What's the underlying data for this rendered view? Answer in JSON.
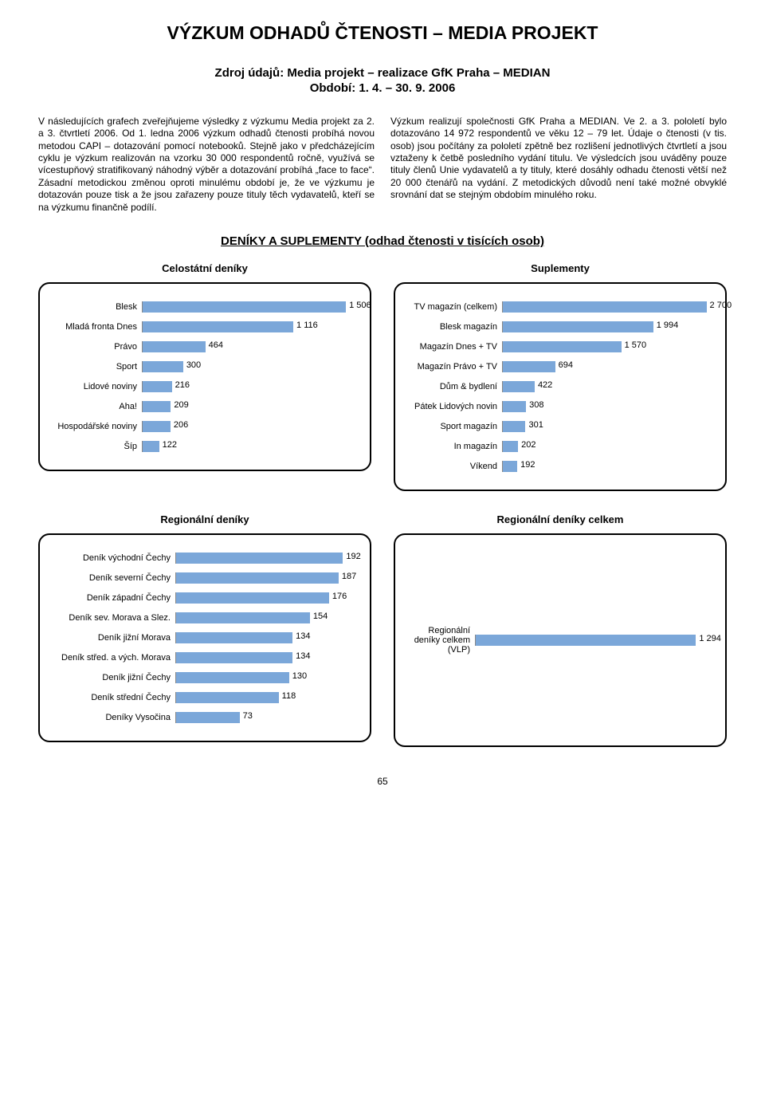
{
  "header": {
    "title": "VÝZKUM ODHADŮ ČTENOSTI – MEDIA PROJEKT",
    "subtitle": "Zdroj údajů: Media projekt – realizace GfK Praha – MEDIAN",
    "period": "Období: 1. 4. – 30. 9. 2006"
  },
  "body": {
    "left": "V následujících grafech zveřejňujeme výsledky z výzkumu Media projekt za 2. a 3. čtvrtletí 2006. Od 1. ledna 2006 výzkum odhadů čtenosti probíhá novou metodou CAPI – dotazování pomocí notebooků. Stejně jako v předcházejícím cyklu je výzkum realizován na vzorku 30 000 respondentů ročně, využívá se vícestupňový stratifikovaný náhodný výběr a dotazování probíhá „face to face“. Zásadní metodickou změnou oproti minulému období je, že ve výzkumu je dotazován pouze tisk a že jsou zařazeny pouze tituly těch vydavatelů, kteří se na výzkumu finančně podílí.",
    "right": "Výzkum realizují společnosti GfK Praha a MEDIAN. Ve 2. a 3. pololetí bylo dotazováno 14 972 respondentů ve věku 12 – 79 let. Údaje o čtenosti (v tis. osob) jsou počítány za pololetí zpětně bez rozlišení jednotlivých čtvrtletí a jsou vztaženy k četbě posledního vydání titulu. Ve výsledcích jsou uváděny pouze tituly členů Unie vydavatelů a ty tituly, které dosáhly odhadu čtenosti větší než 20 000 čtenářů na vydání. Z metodických důvodů není také možné obvyklé srovnání dat se stejným obdobím minulého roku."
  },
  "section_heading": "DENÍKY A SUPLEMENTY (odhad čtenosti v tisících osob)",
  "charts": {
    "bar_color": "#7ba7d9",
    "celostatni": {
      "caption": "Celostátní deníky",
      "label_width": 118,
      "max": 1600,
      "items": [
        {
          "label": "Blesk",
          "value": 1506,
          "text": "1 506"
        },
        {
          "label": "Mladá fronta Dnes",
          "value": 1116,
          "text": "1 116"
        },
        {
          "label": "Právo",
          "value": 464,
          "text": "464"
        },
        {
          "label": "Sport",
          "value": 300,
          "text": "300"
        },
        {
          "label": "Lidové noviny",
          "value": 216,
          "text": "216"
        },
        {
          "label": "Aha!",
          "value": 209,
          "text": "209"
        },
        {
          "label": "Hospodářské noviny",
          "value": 206,
          "text": "206"
        },
        {
          "label": "Šíp",
          "value": 122,
          "text": "122"
        }
      ]
    },
    "suplementy": {
      "caption": "Suplementy",
      "label_width": 124,
      "max": 2800,
      "items": [
        {
          "label": "TV magazín (celkem)",
          "value": 2700,
          "text": "2 700"
        },
        {
          "label": "Blesk magazín",
          "value": 1994,
          "text": "1 994"
        },
        {
          "label": "Magazín Dnes + TV",
          "value": 1570,
          "text": "1 570"
        },
        {
          "label": "Magazín Právo + TV",
          "value": 694,
          "text": "694"
        },
        {
          "label": "Dům & bydlení",
          "value": 422,
          "text": "422"
        },
        {
          "label": "Pátek Lidových novin",
          "value": 308,
          "text": "308"
        },
        {
          "label": "Sport magazín",
          "value": 301,
          "text": "301"
        },
        {
          "label": "In magazín",
          "value": 202,
          "text": "202"
        },
        {
          "label": "Víkend",
          "value": 192,
          "text": "192"
        }
      ]
    },
    "regionalni": {
      "caption": "Regionální deníky",
      "label_width": 160,
      "max": 210,
      "items": [
        {
          "label": "Deník východní Čechy",
          "value": 192,
          "text": "192"
        },
        {
          "label": "Deník severní Čechy",
          "value": 187,
          "text": "187"
        },
        {
          "label": "Deník západní Čechy",
          "value": 176,
          "text": "176"
        },
        {
          "label": "Deník sev. Morava a Slez.",
          "value": 154,
          "text": "154"
        },
        {
          "label": "Deník jižní Morava",
          "value": 134,
          "text": "134"
        },
        {
          "label": "Deník střed. a vých. Morava",
          "value": 134,
          "text": "134"
        },
        {
          "label": "Deník jižní Čechy",
          "value": 130,
          "text": "130"
        },
        {
          "label": "Deník střední Čechy",
          "value": 118,
          "text": "118"
        },
        {
          "label": "Deníky Vysočina",
          "value": 73,
          "text": "73"
        }
      ]
    },
    "regionalni_celkem": {
      "caption": "Regionální deníky celkem",
      "label_width": 90,
      "max": 1400,
      "items": [
        {
          "label": "Regionální deníky celkem (VLP)",
          "value": 1294,
          "text": "1 294"
        }
      ]
    }
  },
  "page_num": "65"
}
